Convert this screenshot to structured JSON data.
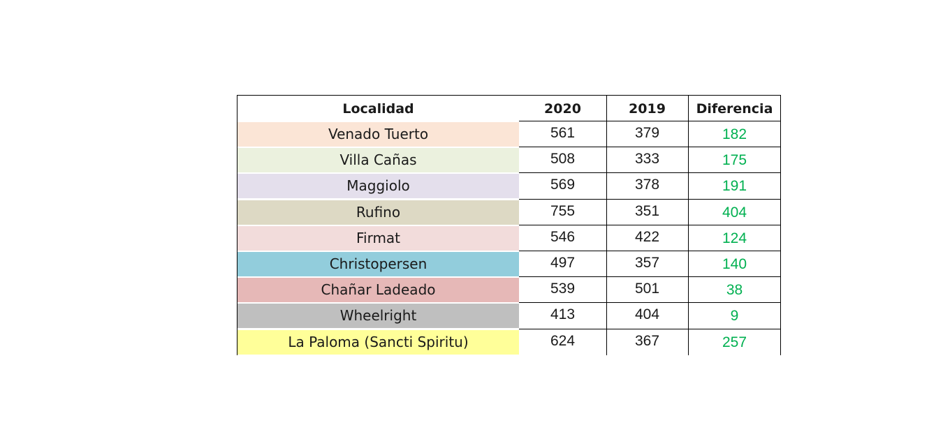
{
  "chart_data": {
    "type": "table",
    "columns": [
      "Localidad",
      "2020",
      "2019",
      "Diferencia"
    ],
    "rows": [
      {
        "localidad": "Venado Tuerto",
        "y2020": "561",
        "y2019": "379",
        "diferencia": "182",
        "color": "#fbe5d6"
      },
      {
        "localidad": "Villa Cañas",
        "y2020": "508",
        "y2019": "333",
        "diferencia": "175",
        "color": "#ebf1de"
      },
      {
        "localidad": "Maggiolo",
        "y2020": "569",
        "y2019": "378",
        "diferencia": "191",
        "color": "#e4dfec"
      },
      {
        "localidad": "Rufino",
        "y2020": "755",
        "y2019": "351",
        "diferencia": "404",
        "color": "#ddd9c4"
      },
      {
        "localidad": "Firmat",
        "y2020": "546",
        "y2019": "422",
        "diferencia": "124",
        "color": "#f2dcdb"
      },
      {
        "localidad": "Christopersen",
        "y2020": "497",
        "y2019": "357",
        "diferencia": "140",
        "color": "#92cddc"
      },
      {
        "localidad": "Chañar Ladeado",
        "y2020": "539",
        "y2019": "501",
        "diferencia": "38",
        "color": "#e6b8b7"
      },
      {
        "localidad": "Wheelright",
        "y2020": "413",
        "y2019": "404",
        "diferencia": "9",
        "color": "#bfbfbf"
      },
      {
        "localidad": "La Paloma (Sancti Spiritu)",
        "y2020": "624",
        "y2019": "367",
        "diferencia": "257",
        "color": "#ffff99"
      }
    ],
    "colors": {
      "difference_text": "#00b050",
      "border": "#000000"
    }
  }
}
